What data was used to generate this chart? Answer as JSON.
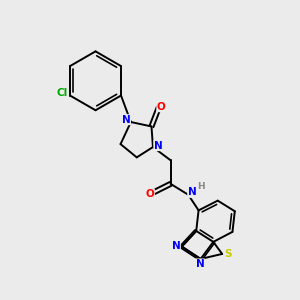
{
  "background_color": "#ebebeb",
  "atom_colors": {
    "C": "#000000",
    "N": "#0000ff",
    "O": "#ff0000",
    "S": "#cccc00",
    "Cl": "#00aa00",
    "H": "#888888"
  },
  "bond_color": "#000000",
  "bond_width": 1.4,
  "figsize": [
    3.0,
    3.0
  ],
  "dpi": 100
}
